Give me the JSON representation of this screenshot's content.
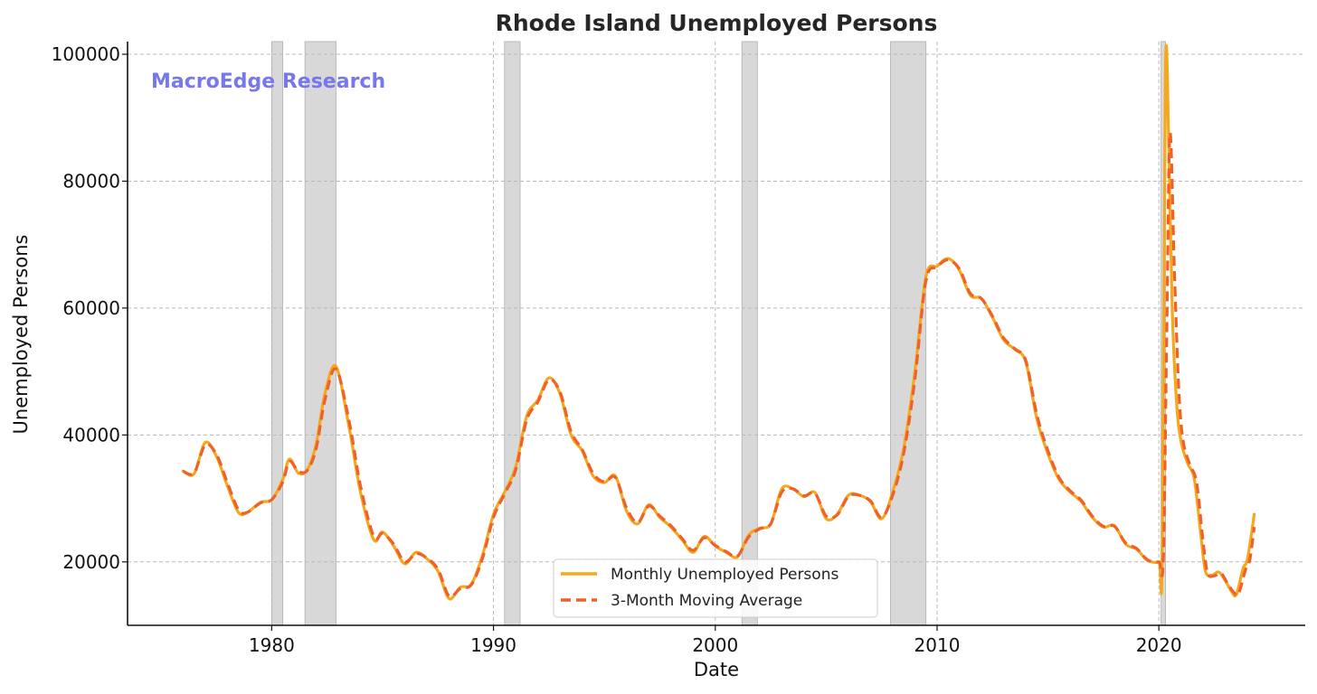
{
  "chart_data": {
    "type": "line",
    "title": "Rhode Island Unemployed Persons",
    "xlabel": "Date",
    "ylabel": "Unemployed Persons",
    "watermark": "MacroEdge Research",
    "xlim": [
      1973.5,
      2026.6
    ],
    "ylim": [
      10000,
      102000
    ],
    "x_ticks": [
      1980,
      1990,
      2000,
      2010,
      2020
    ],
    "y_ticks": [
      20000,
      40000,
      60000,
      80000,
      100000
    ],
    "grid": true,
    "legend_position": "lower-center",
    "recessions": [
      [
        1980.0,
        1980.5
      ],
      [
        1981.5,
        1982.9
      ],
      [
        1990.5,
        1991.2
      ],
      [
        2001.2,
        2001.9
      ],
      [
        2007.9,
        2009.5
      ],
      [
        2020.1,
        2020.3
      ]
    ],
    "colors": {
      "monthly": "#f5a81c",
      "moving_average": "#f0602a",
      "recession": "#d8d8d8",
      "grid": "#b8b8b8",
      "watermark": "#7777ee"
    },
    "series": [
      {
        "name": "Monthly Unemployed Persons",
        "style": "solid",
        "points": [
          [
            1976.0,
            34300
          ],
          [
            1976.5,
            33900
          ],
          [
            1977.0,
            38800
          ],
          [
            1977.5,
            36700
          ],
          [
            1978.0,
            32000
          ],
          [
            1978.5,
            27800
          ],
          [
            1978.9,
            27800
          ],
          [
            1979.5,
            29400
          ],
          [
            1980.0,
            29800
          ],
          [
            1980.5,
            33000
          ],
          [
            1980.8,
            36200
          ],
          [
            1981.2,
            34000
          ],
          [
            1981.6,
            34500
          ],
          [
            1982.0,
            38500
          ],
          [
            1982.4,
            46500
          ],
          [
            1982.9,
            50800
          ],
          [
            1983.5,
            41000
          ],
          [
            1984.0,
            31000
          ],
          [
            1984.6,
            23500
          ],
          [
            1985.0,
            24700
          ],
          [
            1985.5,
            22500
          ],
          [
            1986.0,
            19700
          ],
          [
            1986.5,
            21500
          ],
          [
            1987.0,
            20500
          ],
          [
            1987.5,
            18500
          ],
          [
            1988.0,
            14200
          ],
          [
            1988.5,
            16000
          ],
          [
            1989.0,
            16500
          ],
          [
            1989.5,
            21000
          ],
          [
            1990.0,
            27500
          ],
          [
            1990.5,
            31000
          ],
          [
            1991.0,
            35000
          ],
          [
            1991.5,
            43000
          ],
          [
            1992.0,
            45500
          ],
          [
            1992.5,
            49000
          ],
          [
            1993.0,
            46500
          ],
          [
            1993.5,
            40000
          ],
          [
            1994.0,
            37500
          ],
          [
            1994.5,
            33500
          ],
          [
            1995.0,
            32500
          ],
          [
            1995.5,
            33500
          ],
          [
            1996.0,
            28000
          ],
          [
            1996.5,
            26000
          ],
          [
            1997.0,
            29000
          ],
          [
            1997.5,
            27000
          ],
          [
            1998.0,
            25500
          ],
          [
            1998.5,
            23500
          ],
          [
            1999.0,
            21500
          ],
          [
            1999.5,
            24000
          ],
          [
            2000.0,
            22500
          ],
          [
            2000.5,
            21500
          ],
          [
            2001.0,
            20800
          ],
          [
            2001.5,
            24200
          ],
          [
            2002.0,
            25300
          ],
          [
            2002.5,
            26000
          ],
          [
            2003.0,
            31500
          ],
          [
            2003.5,
            31500
          ],
          [
            2004.0,
            30300
          ],
          [
            2004.5,
            30900
          ],
          [
            2005.0,
            26800
          ],
          [
            2005.5,
            27500
          ],
          [
            2006.0,
            30500
          ],
          [
            2006.5,
            30500
          ],
          [
            2007.0,
            29500
          ],
          [
            2007.5,
            26800
          ],
          [
            2008.0,
            31000
          ],
          [
            2008.5,
            38000
          ],
          [
            2009.0,
            50000
          ],
          [
            2009.5,
            65000
          ],
          [
            2010.0,
            66600
          ],
          [
            2010.5,
            67800
          ],
          [
            2011.0,
            66000
          ],
          [
            2011.5,
            62000
          ],
          [
            2012.0,
            61500
          ],
          [
            2012.5,
            58500
          ],
          [
            2013.0,
            55000
          ],
          [
            2013.5,
            53500
          ],
          [
            2014.0,
            51500
          ],
          [
            2014.5,
            42500
          ],
          [
            2015.0,
            37000
          ],
          [
            2015.5,
            33000
          ],
          [
            2016.0,
            31000
          ],
          [
            2016.5,
            29500
          ],
          [
            2017.0,
            27000
          ],
          [
            2017.5,
            25500
          ],
          [
            2018.0,
            25700
          ],
          [
            2018.5,
            22800
          ],
          [
            2019.0,
            22000
          ],
          [
            2019.5,
            20200
          ],
          [
            2020.0,
            20000
          ],
          [
            2020.15,
            21000
          ],
          [
            2020.3,
            98000
          ],
          [
            2020.45,
            85000
          ],
          [
            2020.6,
            60000
          ],
          [
            2020.8,
            45000
          ],
          [
            2021.0,
            39000
          ],
          [
            2021.3,
            35500
          ],
          [
            2021.6,
            33000
          ],
          [
            2021.9,
            24000
          ],
          [
            2022.1,
            18500
          ],
          [
            2022.4,
            17900
          ],
          [
            2022.7,
            18400
          ],
          [
            2023.0,
            17000
          ],
          [
            2023.3,
            15200
          ],
          [
            2023.5,
            14900
          ],
          [
            2023.8,
            19000
          ],
          [
            2024.0,
            20500
          ],
          [
            2024.3,
            27500
          ]
        ]
      },
      {
        "name": "3-Month Moving Average",
        "style": "dashed",
        "points": [
          [
            1976.0,
            34300
          ],
          [
            1976.5,
            34000
          ],
          [
            1977.0,
            38400
          ],
          [
            1977.5,
            37000
          ],
          [
            1978.0,
            32500
          ],
          [
            1978.5,
            28200
          ],
          [
            1978.9,
            27800
          ],
          [
            1979.5,
            29300
          ],
          [
            1980.0,
            29800
          ],
          [
            1980.5,
            32600
          ],
          [
            1980.8,
            35800
          ],
          [
            1981.2,
            34300
          ],
          [
            1981.6,
            34400
          ],
          [
            1982.0,
            37800
          ],
          [
            1982.4,
            45500
          ],
          [
            1982.9,
            50400
          ],
          [
            1983.5,
            42000
          ],
          [
            1984.0,
            32000
          ],
          [
            1984.6,
            24000
          ],
          [
            1985.0,
            24500
          ],
          [
            1985.5,
            22800
          ],
          [
            1986.0,
            20000
          ],
          [
            1986.5,
            21300
          ],
          [
            1987.0,
            20600
          ],
          [
            1987.5,
            18800
          ],
          [
            1988.0,
            14600
          ],
          [
            1988.5,
            15800
          ],
          [
            1989.0,
            16400
          ],
          [
            1989.5,
            20500
          ],
          [
            1990.0,
            27000
          ],
          [
            1990.5,
            30700
          ],
          [
            1991.0,
            34500
          ],
          [
            1991.5,
            42400
          ],
          [
            1992.0,
            45200
          ],
          [
            1992.5,
            48700
          ],
          [
            1993.0,
            46800
          ],
          [
            1993.5,
            40500
          ],
          [
            1994.0,
            37700
          ],
          [
            1994.5,
            33900
          ],
          [
            1995.0,
            32600
          ],
          [
            1995.5,
            33300
          ],
          [
            1996.0,
            28500
          ],
          [
            1996.5,
            26200
          ],
          [
            1997.0,
            28800
          ],
          [
            1997.5,
            27200
          ],
          [
            1998.0,
            25700
          ],
          [
            1998.5,
            23700
          ],
          [
            1999.0,
            21800
          ],
          [
            1999.5,
            23800
          ],
          [
            2000.0,
            22600
          ],
          [
            2000.5,
            21600
          ],
          [
            2001.0,
            20900
          ],
          [
            2001.5,
            23900
          ],
          [
            2002.0,
            25200
          ],
          [
            2002.5,
            26000
          ],
          [
            2003.0,
            31000
          ],
          [
            2003.5,
            31500
          ],
          [
            2004.0,
            30400
          ],
          [
            2004.5,
            30800
          ],
          [
            2005.0,
            27200
          ],
          [
            2005.5,
            27400
          ],
          [
            2006.0,
            30300
          ],
          [
            2006.5,
            30500
          ],
          [
            2007.0,
            29600
          ],
          [
            2007.5,
            27000
          ],
          [
            2008.0,
            30500
          ],
          [
            2008.5,
            37200
          ],
          [
            2009.0,
            48800
          ],
          [
            2009.5,
            64300
          ],
          [
            2010.0,
            66500
          ],
          [
            2010.5,
            67600
          ],
          [
            2011.0,
            66200
          ],
          [
            2011.5,
            62300
          ],
          [
            2012.0,
            61500
          ],
          [
            2012.5,
            58700
          ],
          [
            2013.0,
            55300
          ],
          [
            2013.5,
            53600
          ],
          [
            2014.0,
            51700
          ],
          [
            2014.5,
            43200
          ],
          [
            2015.0,
            37500
          ],
          [
            2015.5,
            33300
          ],
          [
            2016.0,
            31200
          ],
          [
            2016.5,
            29700
          ],
          [
            2017.0,
            27200
          ],
          [
            2017.5,
            25600
          ],
          [
            2018.0,
            25600
          ],
          [
            2018.5,
            23000
          ],
          [
            2019.0,
            22100
          ],
          [
            2019.5,
            20300
          ],
          [
            2020.0,
            20000
          ],
          [
            2020.2,
            20500
          ],
          [
            2020.35,
            55000
          ],
          [
            2020.5,
            87500
          ],
          [
            2020.7,
            66000
          ],
          [
            2020.9,
            47000
          ],
          [
            2021.1,
            39000
          ],
          [
            2021.4,
            35300
          ],
          [
            2021.7,
            32500
          ],
          [
            2022.0,
            23000
          ],
          [
            2022.2,
            18200
          ],
          [
            2022.5,
            17800
          ],
          [
            2022.8,
            18200
          ],
          [
            2023.1,
            16600
          ],
          [
            2023.4,
            15100
          ],
          [
            2023.6,
            15000
          ],
          [
            2023.9,
            18700
          ],
          [
            2024.1,
            20300
          ],
          [
            2024.3,
            25500
          ]
        ]
      }
    ]
  }
}
